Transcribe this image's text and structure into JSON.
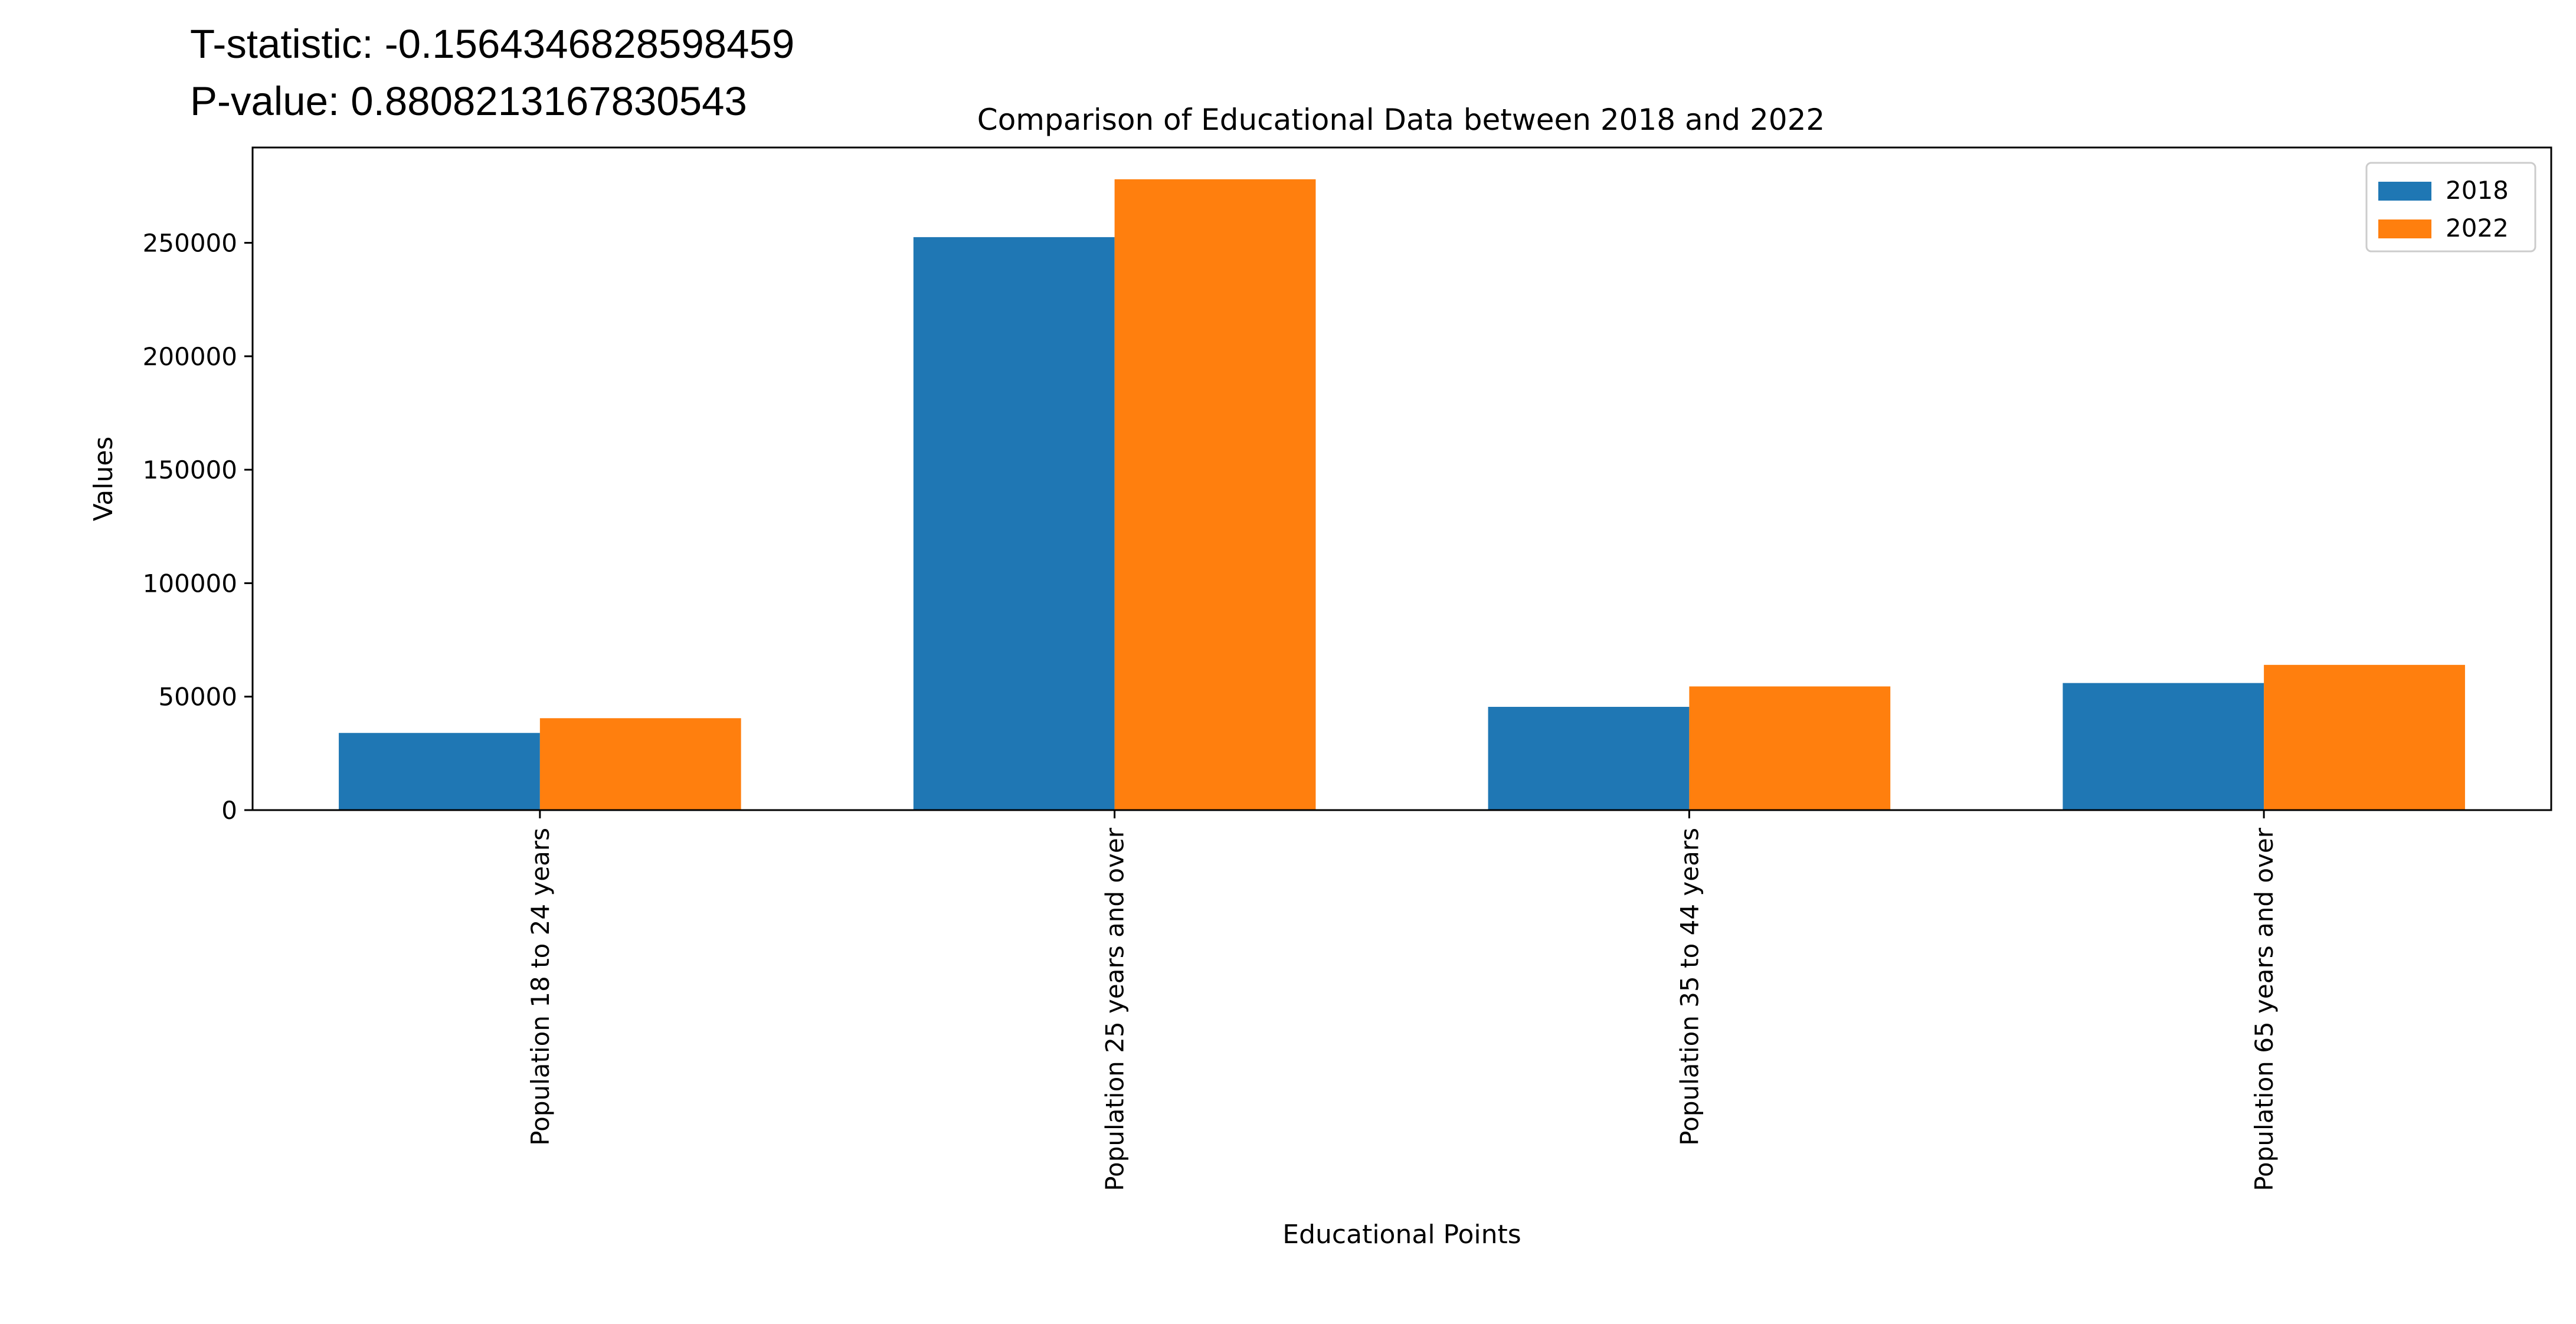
{
  "statistics": {
    "t_statistic_text": "T-statistic: -0.1564346828598459",
    "p_value_text": "P-value: 0.8808213167830543"
  },
  "chart_data": {
    "type": "bar",
    "title": "Comparison of Educational Data between 2018 and 2022",
    "xlabel": "Educational Points",
    "ylabel": "Values",
    "categories": [
      "Population 18 to 24 years",
      "Population 25 years and over",
      "Population 35 to 44 years",
      "Population 65 years and over"
    ],
    "series": [
      {
        "name": "2018",
        "color": "#1f77b4",
        "values": [
          34000,
          252500,
          45500,
          56000
        ]
      },
      {
        "name": "2022",
        "color": "#ff7f0e",
        "values": [
          40500,
          278000,
          54500,
          64000
        ]
      }
    ],
    "ylim": [
      0,
      292000
    ],
    "yticks": [
      0,
      50000,
      100000,
      150000,
      200000,
      250000
    ],
    "ytick_labels": [
      "0",
      "50000",
      "100000",
      "150000",
      "200000",
      "250000"
    ],
    "legend": {
      "position": "top-right",
      "entries": [
        "2018",
        "2022"
      ]
    },
    "grid": false
  }
}
